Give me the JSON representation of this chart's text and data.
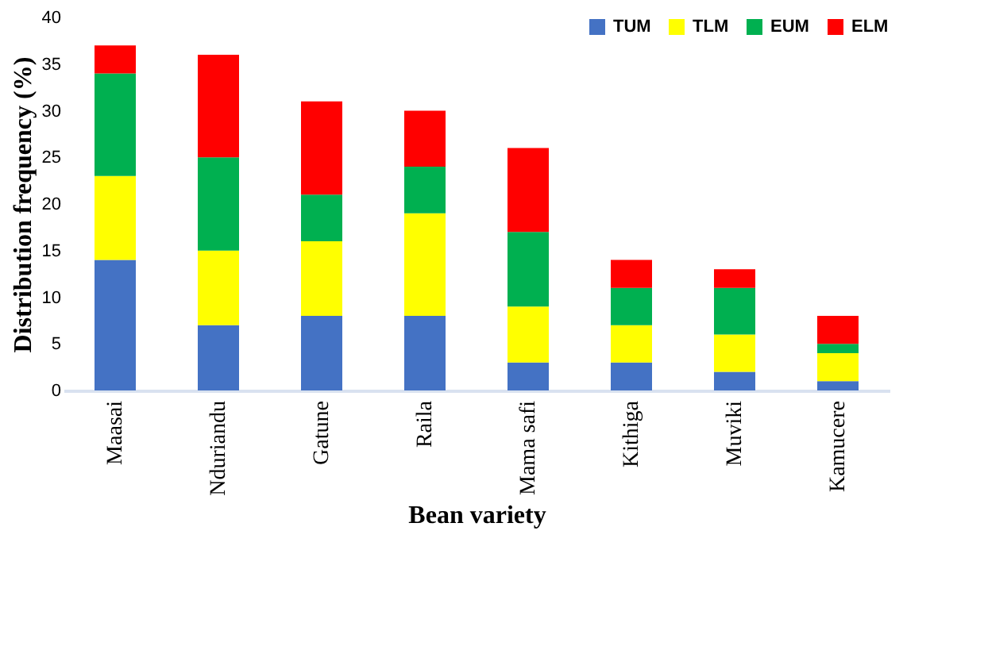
{
  "chart_data": {
    "type": "bar",
    "stacked": true,
    "xlabel": "Bean variety",
    "ylabel": "Distribution frequency (%)",
    "categories": [
      "Maasai",
      "Nduriandu",
      "Gatune",
      "Raila",
      "Mama safi",
      "Kithiga",
      "Muviki",
      "Kamucere"
    ],
    "series": [
      {
        "name": "TUM",
        "color": "#4472c4",
        "values": [
          14,
          7,
          8,
          8,
          3,
          3,
          2,
          1
        ]
      },
      {
        "name": "TLM",
        "color": "#ffff00",
        "values": [
          9,
          8,
          8,
          11,
          6,
          4,
          4,
          3
        ]
      },
      {
        "name": "EUM",
        "color": "#00b050",
        "values": [
          11,
          10,
          5,
          5,
          8,
          4,
          5,
          1
        ]
      },
      {
        "name": "ELM",
        "color": "#ff0000",
        "values": [
          3,
          11,
          10,
          6,
          9,
          3,
          2,
          3
        ]
      }
    ],
    "ylim": [
      0,
      40
    ],
    "yticks": [
      0,
      5,
      10,
      15,
      20,
      25,
      30,
      35,
      40
    ],
    "grid": false,
    "legend": "top right"
  }
}
